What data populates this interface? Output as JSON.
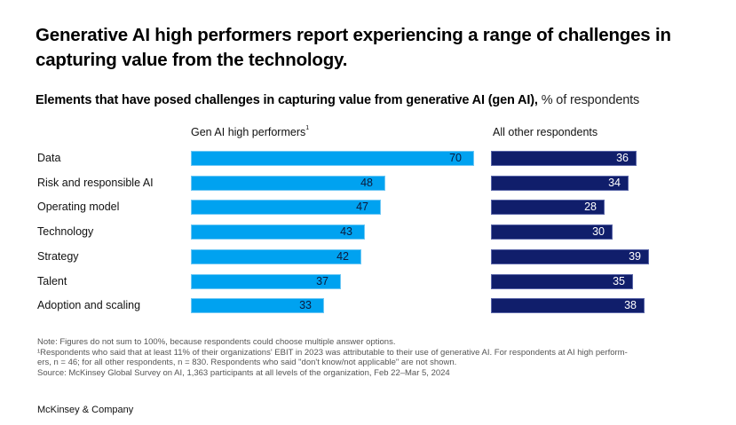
{
  "title": "Generative AI high performers report experiencing a range of challenges in capturing value from the technology.",
  "subtitle": {
    "bold": "Elements that have posed challenges in capturing value from generative AI (gen AI),",
    "unit": " % of respondents"
  },
  "colors": {
    "high_performers": "#00a2f0",
    "all_others": "#101e6b"
  },
  "chart_data": {
    "type": "bar",
    "orientation": "horizontal",
    "title": "Elements that have posed challenges in capturing value from generative AI (gen AI), % of respondents",
    "categories": [
      "Data",
      "Risk and responsible AI",
      "Operating model",
      "Technology",
      "Strategy",
      "Talent",
      "Adoption and scaling"
    ],
    "series": [
      {
        "name": "Gen AI high performers",
        "footnote": "1",
        "values": [
          70,
          48,
          47,
          43,
          42,
          37,
          33
        ]
      },
      {
        "name": "All other respondents",
        "values": [
          36,
          34,
          28,
          30,
          39,
          35,
          38
        ]
      }
    ],
    "xlabel": "",
    "ylabel": "% of respondents",
    "xlim": [
      0,
      100
    ],
    "grid": false,
    "legend": "column headers above each panel"
  },
  "notes": [
    "Note: Figures do not sum to 100%, because respondents could choose multiple answer options.",
    "¹Respondents who said that at least 11% of their organizations' EBIT in 2023 was attributable to their use of generative AI. For respondents at AI high perform-",
    "ers, n = 46; for all other respondents, n = 830. Respondents who said \"don't know/not applicable\" are not shown.",
    "Source: McKinsey Global Survey on AI, 1,363 participants at all levels of the organization, Feb 22–Mar 5, 2024"
  ],
  "brand": "McKinsey & Company"
}
